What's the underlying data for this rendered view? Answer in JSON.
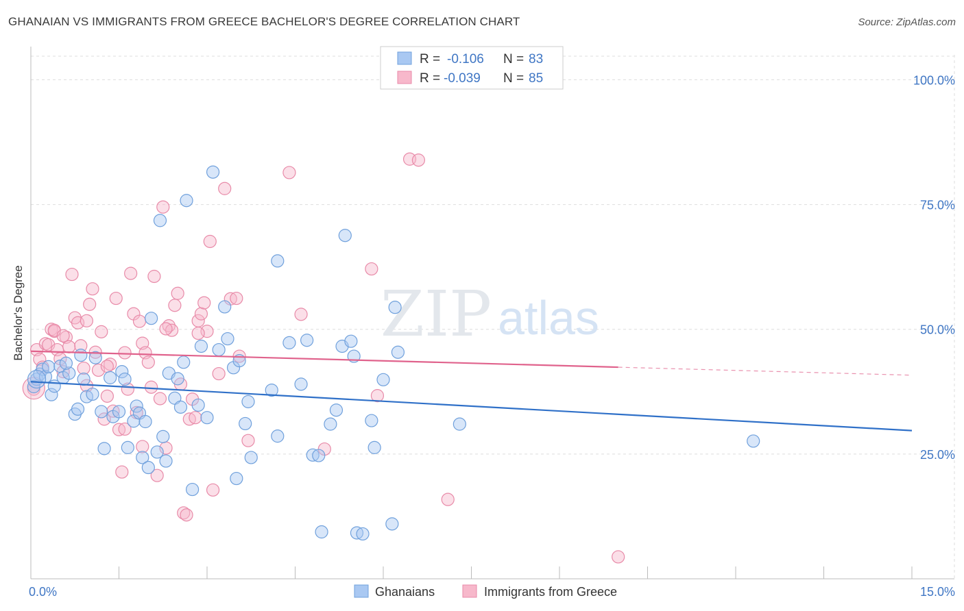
{
  "title": "GHANAIAN VS IMMIGRANTS FROM GREECE BACHELOR'S DEGREE CORRELATION CHART",
  "source": "Source: ZipAtlas.com",
  "watermark": {
    "zip": "ZIP",
    "atlas": "atlas"
  },
  "colors": {
    "blue_fill": "#a9c8f2",
    "blue_stroke": "#6fa0dc",
    "blue_line": "#2f70c8",
    "pink_fill": "#f7b8cb",
    "pink_stroke": "#e88aa8",
    "pink_line": "#e0628c",
    "axis_text": "#3f76c4",
    "grid": "#dddddd"
  },
  "legend": {
    "rows": [
      {
        "r_label": "R =",
        "r_value": "-0.106",
        "n_label": "N =",
        "n_value": "83"
      },
      {
        "r_label": "R =",
        "r_value": "-0.039",
        "n_label": "N =",
        "n_value": "85"
      }
    ]
  },
  "bottom_legend": {
    "series1": "Ghanaians",
    "series2": "Immigrants from Greece"
  },
  "chart_data": {
    "type": "scatter",
    "xlabel": "",
    "ylabel": "Bachelor's Degree",
    "xlim": [
      0,
      15
    ],
    "ylim": [
      0,
      105
    ],
    "x_tick_labels": [
      {
        "value": 0,
        "label": "0.0%"
      },
      {
        "value": 15,
        "label": "15.0%"
      }
    ],
    "y_tick_labels": [
      {
        "value": 25,
        "label": "25.0%"
      },
      {
        "value": 50,
        "label": "50.0%"
      },
      {
        "value": 75,
        "label": "75.0%"
      },
      {
        "value": 100,
        "label": "100.0%"
      }
    ],
    "series": [
      {
        "name": "Ghanaians",
        "r": -0.106,
        "n": 83,
        "trend": {
          "x": [
            0,
            15
          ],
          "y": [
            39.5,
            29.7
          ]
        },
        "points": [
          [
            0.05,
            38.5
          ],
          [
            0.1,
            40.0
          ],
          [
            0.15,
            41.0
          ],
          [
            0.2,
            42.0
          ],
          [
            0.25,
            40.5
          ],
          [
            0.3,
            42.5
          ],
          [
            0.35,
            36.9
          ],
          [
            0.4,
            38.6
          ],
          [
            0.5,
            42.6
          ],
          [
            0.55,
            40.3
          ],
          [
            0.65,
            41.2
          ],
          [
            0.6,
            43.2
          ],
          [
            0.75,
            33.0
          ],
          [
            0.8,
            34.0
          ],
          [
            0.85,
            44.8
          ],
          [
            0.9,
            40.0
          ],
          [
            0.95,
            36.5
          ],
          [
            1.05,
            37.0
          ],
          [
            1.1,
            44.3
          ],
          [
            1.2,
            33.5
          ],
          [
            1.25,
            26.1
          ],
          [
            1.35,
            40.3
          ],
          [
            1.4,
            32.5
          ],
          [
            1.5,
            33.5
          ],
          [
            1.55,
            41.5
          ],
          [
            1.6,
            40.0
          ],
          [
            1.65,
            26.3
          ],
          [
            1.75,
            31.6
          ],
          [
            1.8,
            34.6
          ],
          [
            1.85,
            33.2
          ],
          [
            1.9,
            24.3
          ],
          [
            1.95,
            31.5
          ],
          [
            2.0,
            22.3
          ],
          [
            2.05,
            52.2
          ],
          [
            2.15,
            25.4
          ],
          [
            2.2,
            71.8
          ],
          [
            2.25,
            28.5
          ],
          [
            2.3,
            23.6
          ],
          [
            2.35,
            41.2
          ],
          [
            2.45,
            36.2
          ],
          [
            2.5,
            40.1
          ],
          [
            2.55,
            34.4
          ],
          [
            2.6,
            43.4
          ],
          [
            2.65,
            75.8
          ],
          [
            2.75,
            17.9
          ],
          [
            2.85,
            34.8
          ],
          [
            2.9,
            46.6
          ],
          [
            3.0,
            32.3
          ],
          [
            3.1,
            81.5
          ],
          [
            3.2,
            45.9
          ],
          [
            3.3,
            54.5
          ],
          [
            3.35,
            48.1
          ],
          [
            3.45,
            42.3
          ],
          [
            3.5,
            20.1
          ],
          [
            3.55,
            43.7
          ],
          [
            3.65,
            31.1
          ],
          [
            3.7,
            35.5
          ],
          [
            3.75,
            24.3
          ],
          [
            4.1,
            37.8
          ],
          [
            4.2,
            63.7
          ],
          [
            4.2,
            28.6
          ],
          [
            4.4,
            47.3
          ],
          [
            4.6,
            39.0
          ],
          [
            4.7,
            47.8
          ],
          [
            4.8,
            24.8
          ],
          [
            4.9,
            24.7
          ],
          [
            4.95,
            9.4
          ],
          [
            5.1,
            31.0
          ],
          [
            5.2,
            33.8
          ],
          [
            5.3,
            46.6
          ],
          [
            5.35,
            68.8
          ],
          [
            5.45,
            47.6
          ],
          [
            5.5,
            44.6
          ],
          [
            5.55,
            9.2
          ],
          [
            5.65,
            9.0
          ],
          [
            5.8,
            31.7
          ],
          [
            5.85,
            26.3
          ],
          [
            6.0,
            39.9
          ],
          [
            6.15,
            11.0
          ],
          [
            6.2,
            54.4
          ],
          [
            6.25,
            45.4
          ],
          [
            7.3,
            31.0
          ],
          [
            12.3,
            27.6
          ]
        ]
      },
      {
        "name": "Immigrants from Greece",
        "r": -0.039,
        "n": 85,
        "trend": {
          "x": [
            0,
            10
          ],
          "y": [
            45.6,
            42.4
          ],
          "dashed_to": [
            15,
            40.8
          ]
        },
        "points": [
          [
            0.05,
            38.0
          ],
          [
            0.1,
            45.9
          ],
          [
            0.15,
            44.0
          ],
          [
            0.2,
            42.4
          ],
          [
            0.25,
            47.1
          ],
          [
            0.3,
            46.9
          ],
          [
            0.35,
            50.0
          ],
          [
            0.4,
            49.6
          ],
          [
            0.45,
            45.9
          ],
          [
            0.5,
            44.1
          ],
          [
            0.55,
            41.5
          ],
          [
            0.6,
            48.4
          ],
          [
            0.65,
            46.5
          ],
          [
            0.7,
            61.0
          ],
          [
            0.75,
            52.3
          ],
          [
            0.8,
            51.3
          ],
          [
            0.85,
            46.7
          ],
          [
            0.9,
            42.2
          ],
          [
            0.95,
            38.7
          ],
          [
            1.0,
            55.0
          ],
          [
            1.05,
            58.1
          ],
          [
            1.1,
            45.4
          ],
          [
            1.15,
            41.8
          ],
          [
            1.2,
            49.5
          ],
          [
            1.25,
            32.0
          ],
          [
            1.3,
            36.6
          ],
          [
            1.35,
            43.0
          ],
          [
            1.4,
            33.6
          ],
          [
            1.45,
            56.2
          ],
          [
            1.5,
            29.9
          ],
          [
            1.55,
            21.4
          ],
          [
            1.6,
            30.0
          ],
          [
            1.65,
            38.0
          ],
          [
            1.7,
            61.2
          ],
          [
            1.75,
            53.1
          ],
          [
            1.8,
            33.3
          ],
          [
            1.85,
            51.6
          ],
          [
            1.9,
            47.2
          ],
          [
            1.95,
            45.3
          ],
          [
            2.0,
            43.4
          ],
          [
            2.05,
            38.4
          ],
          [
            2.1,
            60.6
          ],
          [
            2.15,
            20.7
          ],
          [
            2.2,
            36.1
          ],
          [
            2.25,
            74.5
          ],
          [
            2.3,
            26.2
          ],
          [
            2.35,
            50.7
          ],
          [
            2.4,
            49.8
          ],
          [
            2.45,
            54.8
          ],
          [
            2.5,
            57.2
          ],
          [
            2.55,
            39.0
          ],
          [
            2.6,
            13.2
          ],
          [
            2.65,
            12.8
          ],
          [
            2.7,
            32.0
          ],
          [
            2.75,
            36.0
          ],
          [
            2.8,
            32.3
          ],
          [
            2.85,
            51.7
          ],
          [
            2.9,
            53.1
          ],
          [
            2.95,
            55.3
          ],
          [
            3.0,
            49.6
          ],
          [
            3.05,
            67.6
          ],
          [
            3.1,
            17.8
          ],
          [
            3.2,
            41.1
          ],
          [
            3.3,
            78.2
          ],
          [
            3.4,
            56.1
          ],
          [
            3.5,
            56.2
          ],
          [
            3.55,
            44.6
          ],
          [
            3.7,
            27.7
          ],
          [
            4.4,
            81.4
          ],
          [
            4.6,
            53.0
          ],
          [
            5.0,
            26.0
          ],
          [
            5.8,
            62.1
          ],
          [
            5.9,
            36.7
          ],
          [
            6.45,
            84.1
          ],
          [
            6.6,
            83.9
          ],
          [
            7.1,
            15.9
          ],
          [
            10.0,
            4.4
          ],
          [
            0.4,
            49.8
          ],
          [
            0.55,
            48.7
          ],
          [
            0.95,
            51.7
          ],
          [
            1.3,
            42.6
          ],
          [
            1.6,
            45.3
          ],
          [
            1.9,
            26.5
          ],
          [
            2.3,
            50.1
          ],
          [
            2.85,
            49.2
          ]
        ]
      }
    ]
  }
}
